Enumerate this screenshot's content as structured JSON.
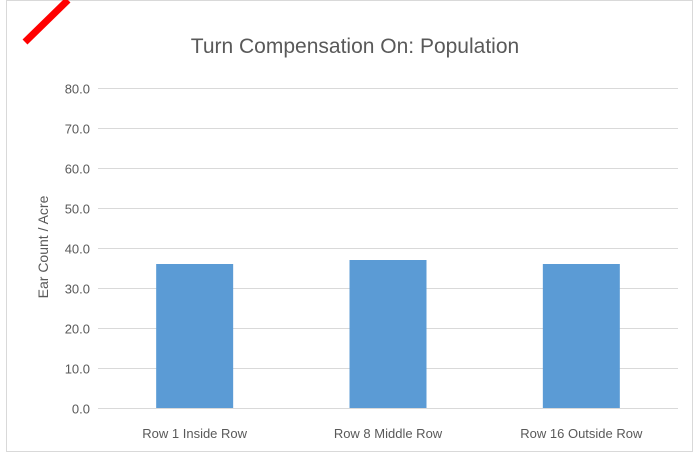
{
  "chart_data": {
    "type": "bar",
    "title": "Turn Compensation On: Population",
    "xlabel": "",
    "ylabel": "Ear Count / Acre",
    "categories": [
      "Row 1 Inside Row",
      "Row 8 Middle Row",
      "Row 16 Outside Row"
    ],
    "values": [
      36.0,
      37.0,
      36.0
    ],
    "ylim": [
      0,
      80
    ],
    "yticks": [
      "0.0",
      "10.0",
      "20.0",
      "30.0",
      "40.0",
      "50.0",
      "60.0",
      "70.0",
      "80.0"
    ],
    "grid": true,
    "legend": "none",
    "colors": {
      "bar": "#5b9bd5",
      "grid": "#d9d9d9",
      "text": "#595959",
      "annotation_stroke": "#ff0000"
    }
  }
}
